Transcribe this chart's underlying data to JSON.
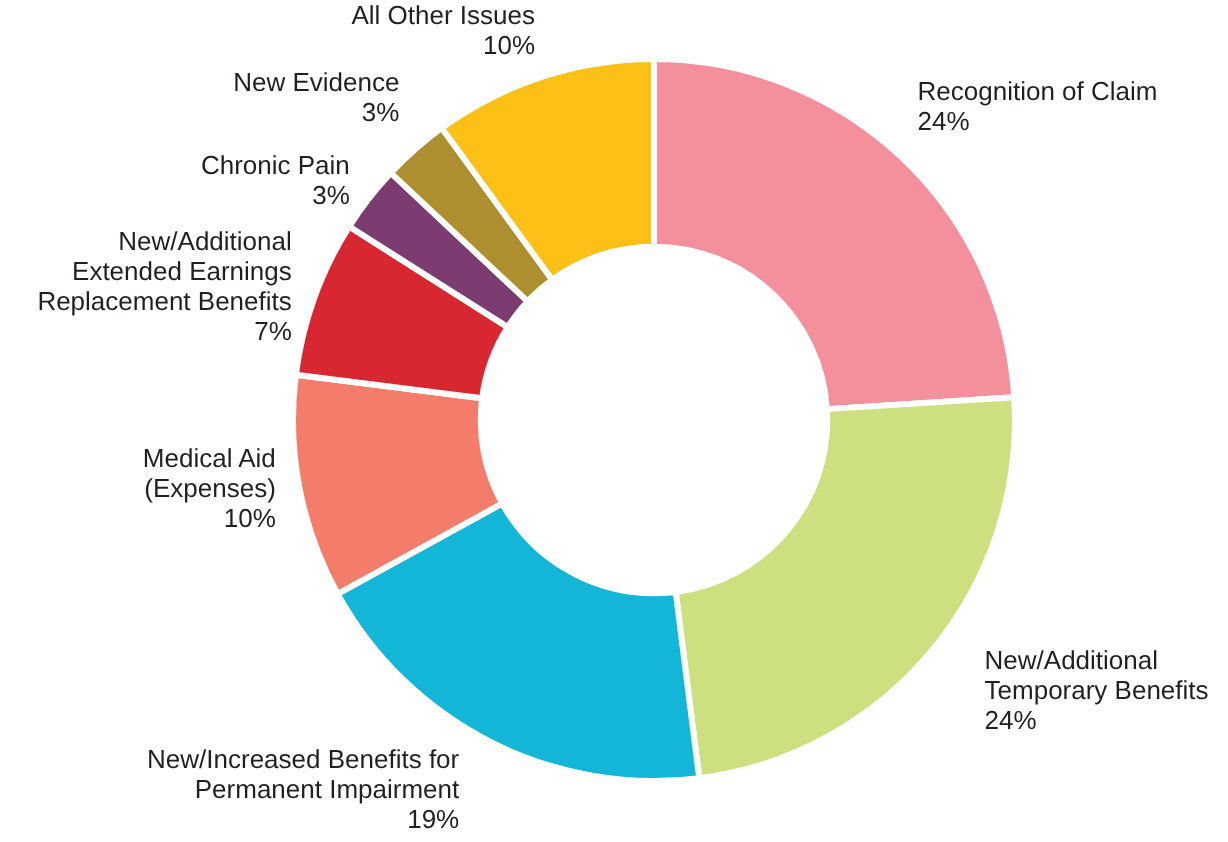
{
  "chart_data": {
    "type": "donut",
    "categories": [
      "Recognition of Claim",
      "New/Additional Temporary Benefits",
      "New/Increased Benefits for Permanent Impairment",
      "Medical Aid (Expenses)",
      "New/Additional Extended Earnings Replacement Benefits",
      "Chronic Pain",
      "New Evidence",
      "All Other Issues"
    ],
    "values": [
      24,
      24,
      19,
      10,
      7,
      3,
      3,
      10
    ],
    "colors": [
      "#f48f9c",
      "#cde07f",
      "#14b6d8",
      "#f47c6b",
      "#d92731",
      "#7c3c72",
      "#ad8f30",
      "#fdc016"
    ],
    "value_labels": [
      "24%",
      "24%",
      "19%",
      "10%",
      "7%",
      "3%",
      "3%",
      "10%"
    ],
    "legend": false
  }
}
